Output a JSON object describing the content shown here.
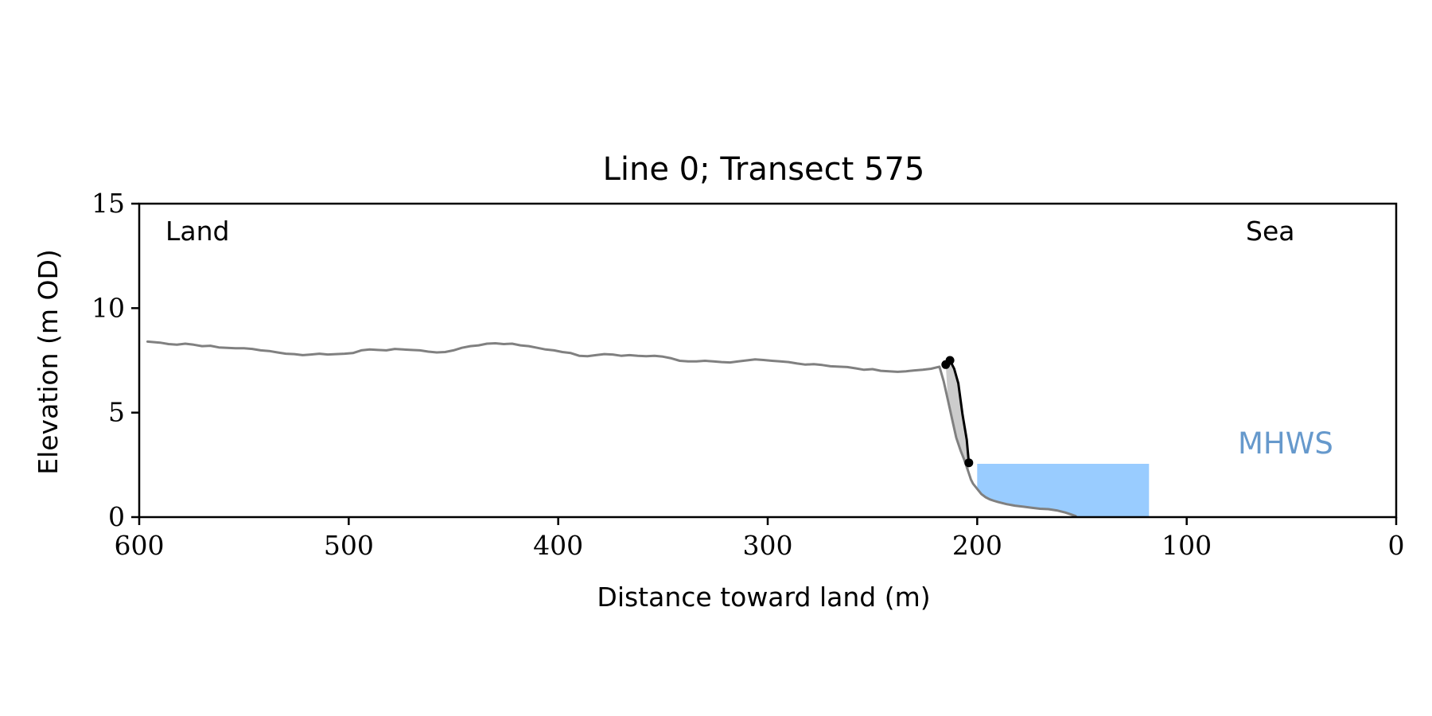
{
  "chart_data": {
    "type": "line",
    "title": "Line 0; Transect 575",
    "xlabel": "Distance toward land (m)",
    "ylabel": "Elevation (m OD)",
    "xlim": [
      600,
      0
    ],
    "ylim": [
      0,
      15
    ],
    "x_ticks": [
      600,
      500,
      400,
      300,
      200,
      100,
      0
    ],
    "y_ticks": [
      0,
      5,
      10,
      15
    ],
    "grid": false,
    "annotations": {
      "land": "Land",
      "sea": "Sea",
      "mhws": "MHWS"
    },
    "colors": {
      "profile": "#808080",
      "cliff": "#000000",
      "cliff_fill": "#cccccc",
      "water": "#99ccff",
      "mhws_text": "#6699cc"
    },
    "series": [
      {
        "x": [
          596,
          590,
          586,
          582,
          578,
          574,
          570,
          566,
          562,
          558,
          554,
          550,
          546,
          542,
          538,
          534,
          530,
          526,
          522,
          518,
          514,
          510,
          506,
          502,
          498,
          494,
          490,
          486,
          482,
          478,
          474,
          470,
          466,
          462,
          458,
          454,
          450,
          446,
          442,
          438,
          434,
          430,
          426,
          422,
          418,
          414,
          410,
          406,
          402,
          398,
          394,
          390,
          386,
          382,
          378,
          374,
          370,
          366,
          362,
          358,
          354,
          350,
          346,
          342,
          338,
          334,
          330,
          326,
          322,
          318,
          314,
          310,
          306,
          302,
          298,
          294,
          290,
          286,
          282,
          278,
          274,
          270,
          266,
          262,
          258,
          254,
          250,
          246,
          242,
          238,
          234,
          230,
          226,
          222,
          218,
          216,
          214,
          212,
          210,
          208,
          206,
          204,
          203,
          202,
          200,
          198,
          196,
          194,
          192,
          190,
          186,
          182,
          178,
          174,
          170,
          166,
          162,
          158,
          155,
          153
        ],
        "y": [
          8.4,
          8.35,
          8.28,
          8.25,
          8.3,
          8.25,
          8.18,
          8.2,
          8.12,
          8.1,
          8.08,
          8.08,
          8.05,
          7.98,
          7.95,
          7.88,
          7.82,
          7.8,
          7.75,
          7.78,
          7.82,
          7.78,
          7.8,
          7.82,
          7.85,
          7.98,
          8.02,
          8.0,
          7.98,
          8.05,
          8.02,
          8.0,
          7.98,
          7.92,
          7.88,
          7.9,
          7.98,
          8.1,
          8.18,
          8.22,
          8.3,
          8.32,
          8.28,
          8.3,
          8.22,
          8.18,
          8.1,
          8.02,
          7.98,
          7.9,
          7.85,
          7.72,
          7.7,
          7.75,
          7.8,
          7.78,
          7.72,
          7.75,
          7.72,
          7.7,
          7.72,
          7.68,
          7.6,
          7.48,
          7.45,
          7.45,
          7.48,
          7.45,
          7.42,
          7.4,
          7.45,
          7.5,
          7.55,
          7.52,
          7.48,
          7.45,
          7.42,
          7.35,
          7.3,
          7.32,
          7.28,
          7.22,
          7.2,
          7.18,
          7.12,
          7.05,
          7.08,
          7.0,
          6.98,
          6.95,
          6.98,
          7.02,
          7.05,
          7.1,
          7.2,
          6.5,
          5.6,
          4.7,
          3.8,
          3.2,
          2.7,
          2.1,
          1.8,
          1.6,
          1.35,
          1.1,
          0.95,
          0.85,
          0.78,
          0.72,
          0.62,
          0.55,
          0.5,
          0.45,
          0.4,
          0.38,
          0.32,
          0.22,
          0.12,
          0.05
        ]
      },
      {
        "x": [
          215,
          213,
          211,
          209,
          207,
          205,
          204
        ],
        "y": [
          7.3,
          7.5,
          7.1,
          6.4,
          4.9,
          3.7,
          2.6
        ]
      }
    ],
    "cliff_points": [
      {
        "x": 215,
        "y": 7.3
      },
      {
        "x": 213,
        "y": 7.5
      },
      {
        "x": 204,
        "y": 2.6
      }
    ],
    "water_region": {
      "x_start": 200,
      "x_end": 118,
      "level": 2.55
    }
  }
}
